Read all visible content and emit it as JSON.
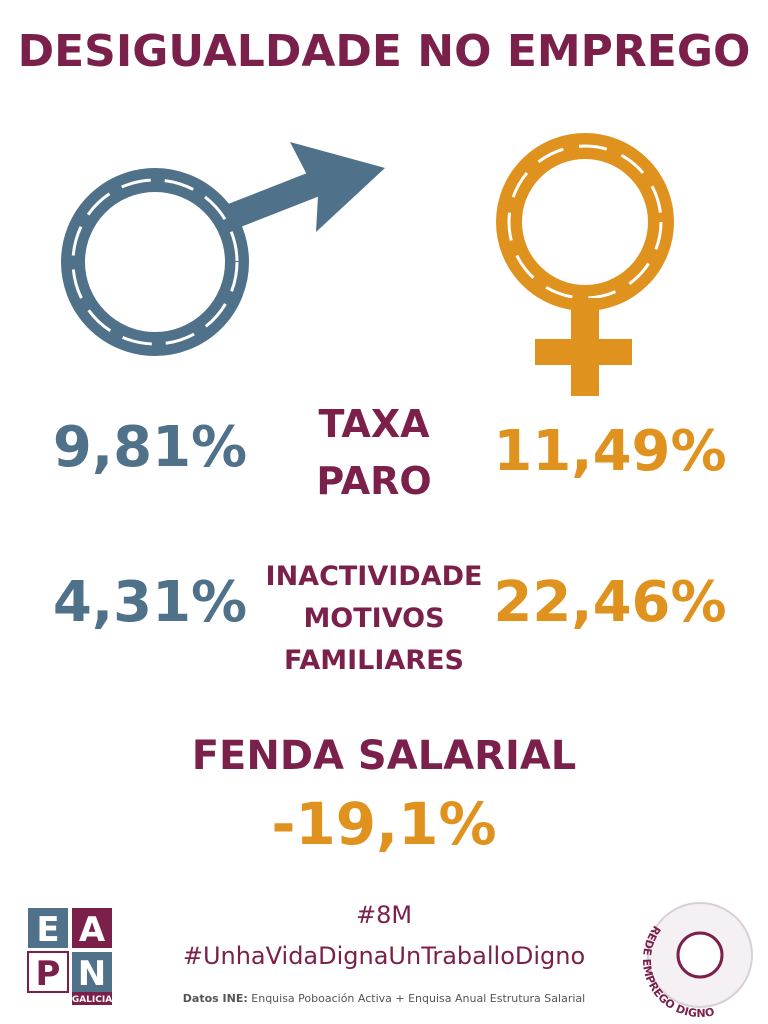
{
  "header": {
    "title": "DESIGUALDADE NO EMPREGO"
  },
  "rows": [
    {
      "male": "9,81%",
      "label_lines": [
        "TAXA",
        "PARO"
      ],
      "female": "11,49%"
    },
    {
      "male": "4,31%",
      "label_lines": [
        "INACTIVIDADE",
        "MOTIVOS",
        "FAMILIARES"
      ],
      "female": "22,46%"
    }
  ],
  "gap": {
    "label": "FENDA SALARIAL",
    "value": "-19,1%"
  },
  "footer": {
    "hashtags": [
      "#8M",
      "#UnhaVidaDignaUnTraballoDigno"
    ],
    "source_label": "Datos INE:",
    "source": "Enquisa Poboación Activa + Enquisa Anual Estrutura Salarial",
    "logo_left": {
      "letters": [
        "E",
        "A",
        "P",
        "N"
      ],
      "sub": "GALICIA"
    },
    "logo_right": {
      "text": "REDE EMPREGO DIGNO"
    }
  }
}
